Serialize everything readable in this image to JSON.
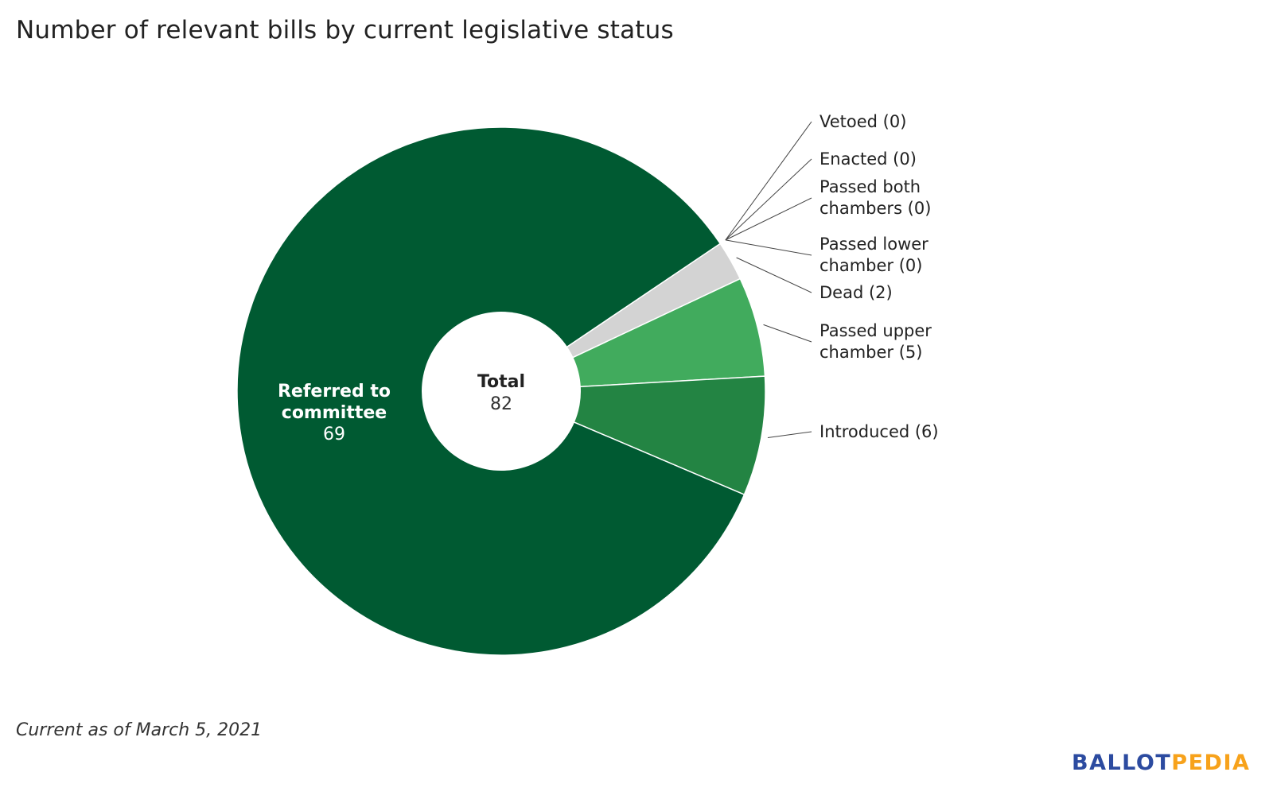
{
  "chart_data": {
    "type": "pie",
    "title": "Number of relevant bills by current legislative status",
    "slices": [
      {
        "label": "Vetoed",
        "value": 0,
        "legend": "Vetoed (0)",
        "color": "#f0ad4e"
      },
      {
        "label": "Enacted",
        "value": 0,
        "legend": "Enacted (0)",
        "color": "#1a7f3c"
      },
      {
        "label": "Passed both chambers",
        "value": 0,
        "legend": [
          "Passed both",
          "chambers (0)"
        ],
        "color": "#3cae5c"
      },
      {
        "label": "Passed lower chamber",
        "value": 0,
        "legend": [
          "Passed lower",
          "chamber (0)"
        ],
        "color": "#7cc98f"
      },
      {
        "label": "Dead",
        "value": 2,
        "legend": "Dead (2)",
        "color": "#d3d3d3"
      },
      {
        "label": "Passed upper chamber",
        "value": 5,
        "legend": [
          "Passed upper",
          "chamber (5)"
        ],
        "color": "#41ab5d"
      },
      {
        "label": "Introduced",
        "value": 6,
        "legend": "Introduced (6)",
        "color": "#238443"
      },
      {
        "label": "Referred to committee",
        "value": 69,
        "inner_label": [
          "Referred to",
          "committee",
          "69"
        ],
        "color": "#005a32"
      }
    ],
    "center": {
      "label": "Total",
      "value": "82"
    },
    "footnote": "Current as of March 5, 2021"
  },
  "brand": {
    "part1": "BALLOT",
    "part2": "PEDIA",
    "color1": "#2c4ba0",
    "color2": "#f7a21b"
  }
}
